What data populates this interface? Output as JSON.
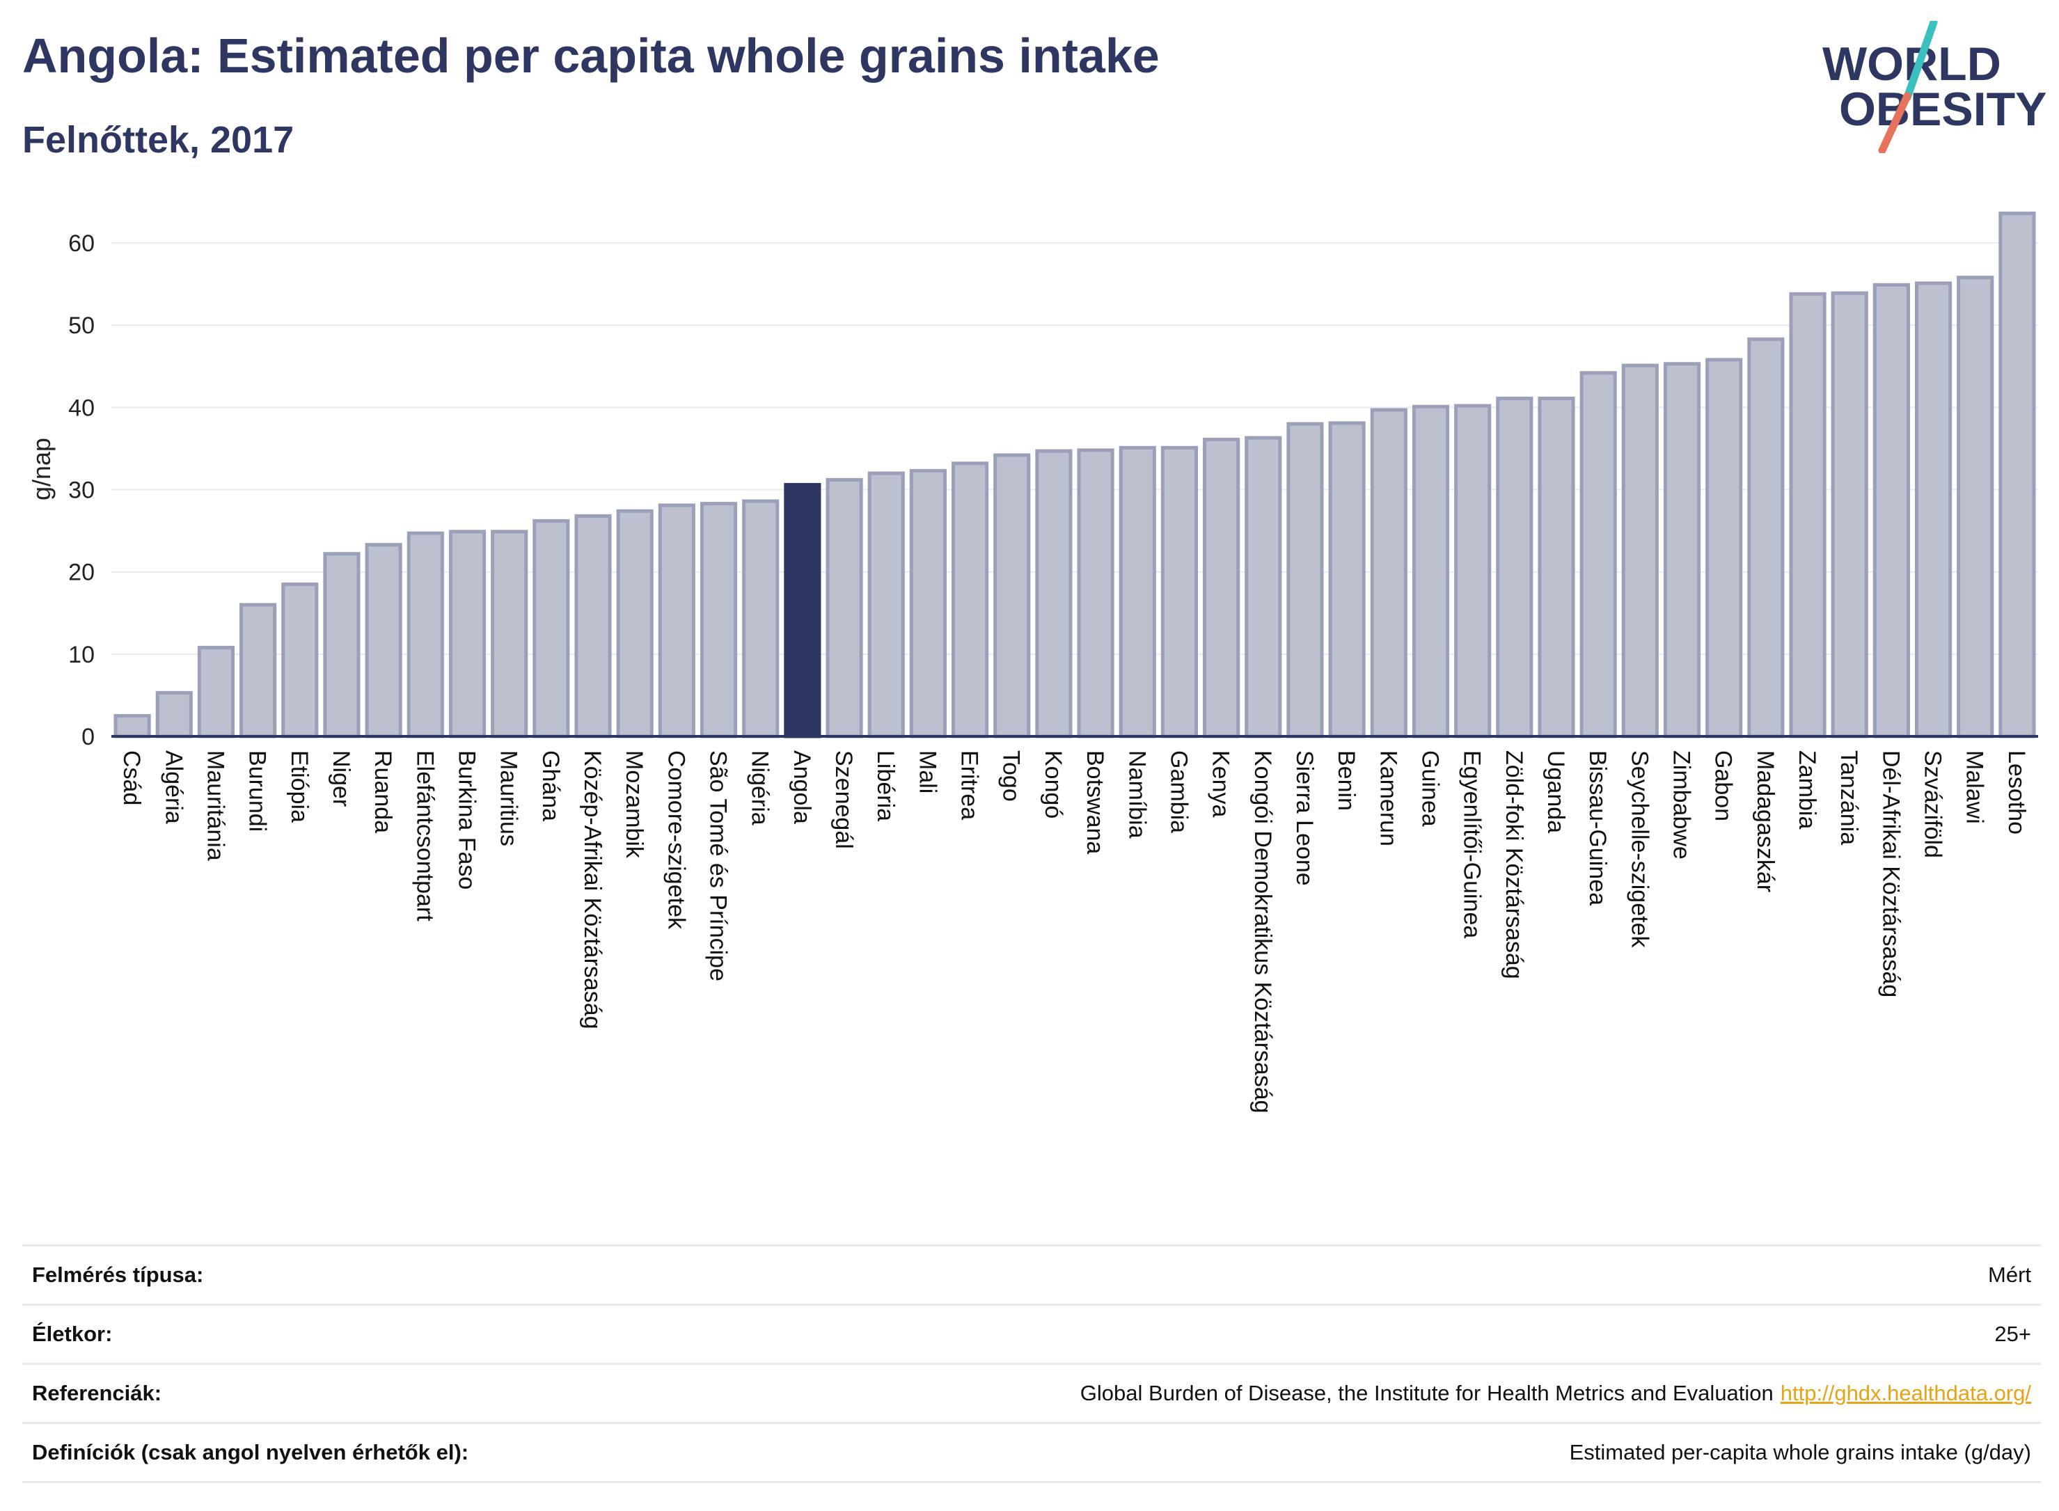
{
  "header": {
    "title": "Angola: Estimated per capita whole grains intake",
    "subtitle": "Felnőttek, 2017"
  },
  "logo": {
    "line1": "WORLD",
    "line2": "OBESITY"
  },
  "colors": {
    "title": "#2d3761",
    "highlight_bar": "#2d3761",
    "bar_fill": "#bcc0cf",
    "bar_stroke": "#9aa0b8",
    "logo_teal": "#3bbfbf",
    "logo_coral": "#e8735d",
    "link": "#e8a317"
  },
  "chart_data": {
    "type": "bar",
    "ylabel": "g/nap",
    "ylim": [
      0,
      65
    ],
    "yticks": [
      0,
      10,
      20,
      30,
      40,
      50,
      60
    ],
    "grid": true,
    "highlight": "Angola",
    "categories": [
      "Csád",
      "Algéria",
      "Mauritánia",
      "Burundi",
      "Etiópia",
      "Niger",
      "Ruanda",
      "Elefántcsontpart",
      "Burkina Faso",
      "Mauritius",
      "Ghána",
      "Közép-Afrikai Köztársaság",
      "Mozambik",
      "Comore-szigetek",
      "São Tomé és Príncipe",
      "Nigéria",
      "Angola",
      "Szenegál",
      "Libéria",
      "Mali",
      "Eritrea",
      "Togo",
      "Kongó",
      "Botswana",
      "Namíbia",
      "Gambia",
      "Kenya",
      "Kongói Demokratikus Köztársaság",
      "Sierra Leone",
      "Benin",
      "Kamerun",
      "Guinea",
      "Egyenlítői-Guinea",
      "Zöld-foki Köztársaság",
      "Uganda",
      "Bissau-Guinea",
      "Seychelle-szigetek",
      "Zimbabwe",
      "Gabon",
      "Madagaszkár",
      "Zambia",
      "Tanzánia",
      "Dél-Afrikai Köztársaság",
      "Szváziföld",
      "Malawi",
      "Lesotho"
    ],
    "values": [
      2.5,
      5.3,
      10.8,
      16.0,
      18.5,
      22.2,
      23.3,
      24.7,
      24.9,
      24.9,
      26.2,
      26.8,
      27.4,
      28.1,
      28.3,
      28.6,
      30.6,
      31.2,
      32.0,
      32.3,
      33.2,
      34.2,
      34.7,
      34.8,
      35.1,
      35.1,
      36.1,
      36.3,
      38.0,
      38.1,
      39.7,
      40.1,
      40.2,
      41.1,
      41.1,
      44.2,
      45.1,
      45.3,
      45.8,
      48.3,
      53.8,
      53.9,
      54.9,
      55.1,
      55.8,
      63.6
    ]
  },
  "info": {
    "rows": [
      {
        "label": "Felmérés típusa:",
        "value": "Mért"
      },
      {
        "label": "Életkor:",
        "value": "25+"
      },
      {
        "label": "Referenciák:",
        "value": "Global Burden of Disease, the Institute for Health Metrics and Evaluation",
        "link": "http://ghdx.healthdata.org/"
      },
      {
        "label": "Definíciók (csak angol nyelven érhetők el):",
        "value": "Estimated per-capita whole grains intake (g/day)"
      }
    ]
  }
}
